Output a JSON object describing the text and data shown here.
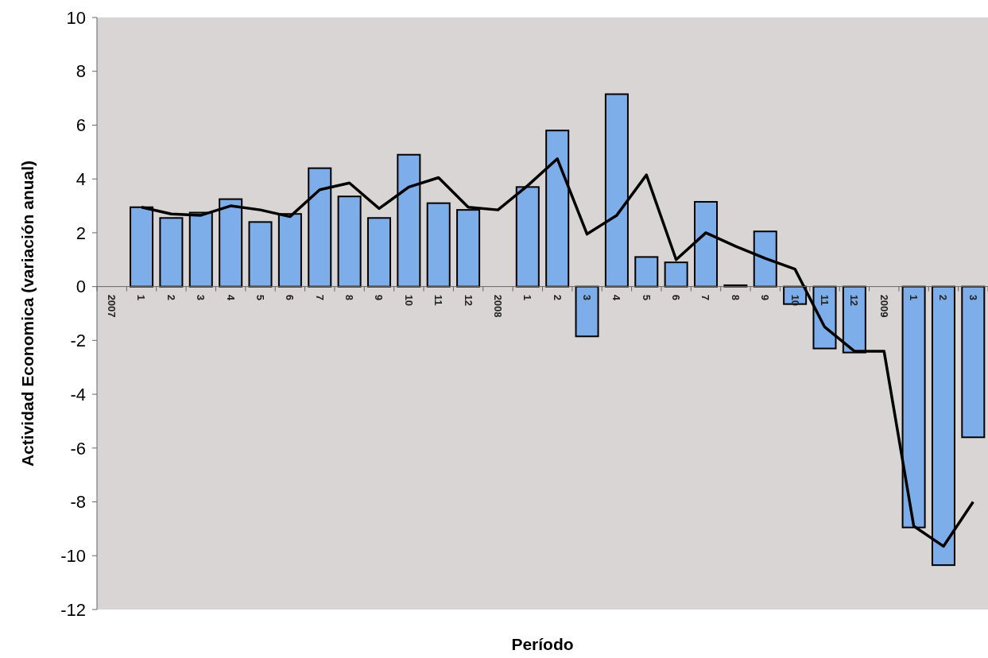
{
  "chart_data": {
    "type": "bar",
    "xlabel": "Período",
    "ylabel": "Actividad Economica (variación anual)",
    "categories": [
      "2007",
      "1",
      "2",
      "3",
      "4",
      "5",
      "6",
      "7",
      "8",
      "9",
      "10",
      "11",
      "12",
      "2008",
      "1",
      "2",
      "3",
      "4",
      "5",
      "6",
      "7",
      "8",
      "9",
      "10",
      "11",
      "12",
      "2009",
      "1",
      "2",
      "3"
    ],
    "series": [
      {
        "color": "#7eaeea",
        "values": [
          null,
          2.95,
          2.55,
          2.75,
          3.25,
          2.4,
          2.7,
          4.4,
          3.35,
          2.55,
          4.9,
          3.1,
          2.85,
          null,
          3.7,
          5.8,
          -1.85,
          7.15,
          1.1,
          0.9,
          3.15,
          0.05,
          2.05,
          -0.65,
          -2.3,
          -2.45,
          null,
          -8.95,
          -10.35,
          -5.6
        ]
      },
      {
        "type": "line",
        "color": "#000000",
        "values": [
          null,
          2.95,
          2.7,
          2.65,
          3.0,
          2.85,
          2.6,
          3.6,
          3.85,
          2.9,
          3.7,
          4.05,
          2.95,
          2.85,
          3.75,
          4.75,
          1.95,
          2.65,
          4.15,
          1.0,
          2.0,
          1.5,
          1.05,
          0.65,
          -1.5,
          -2.4,
          -2.4,
          -8.9,
          -9.65,
          -8.0
        ]
      }
    ],
    "ylim": [
      -12,
      10
    ],
    "yticks": [
      -12,
      -10,
      -8,
      -6,
      -4,
      -2,
      0,
      2,
      4,
      6,
      8,
      10
    ],
    "grid": false
  }
}
